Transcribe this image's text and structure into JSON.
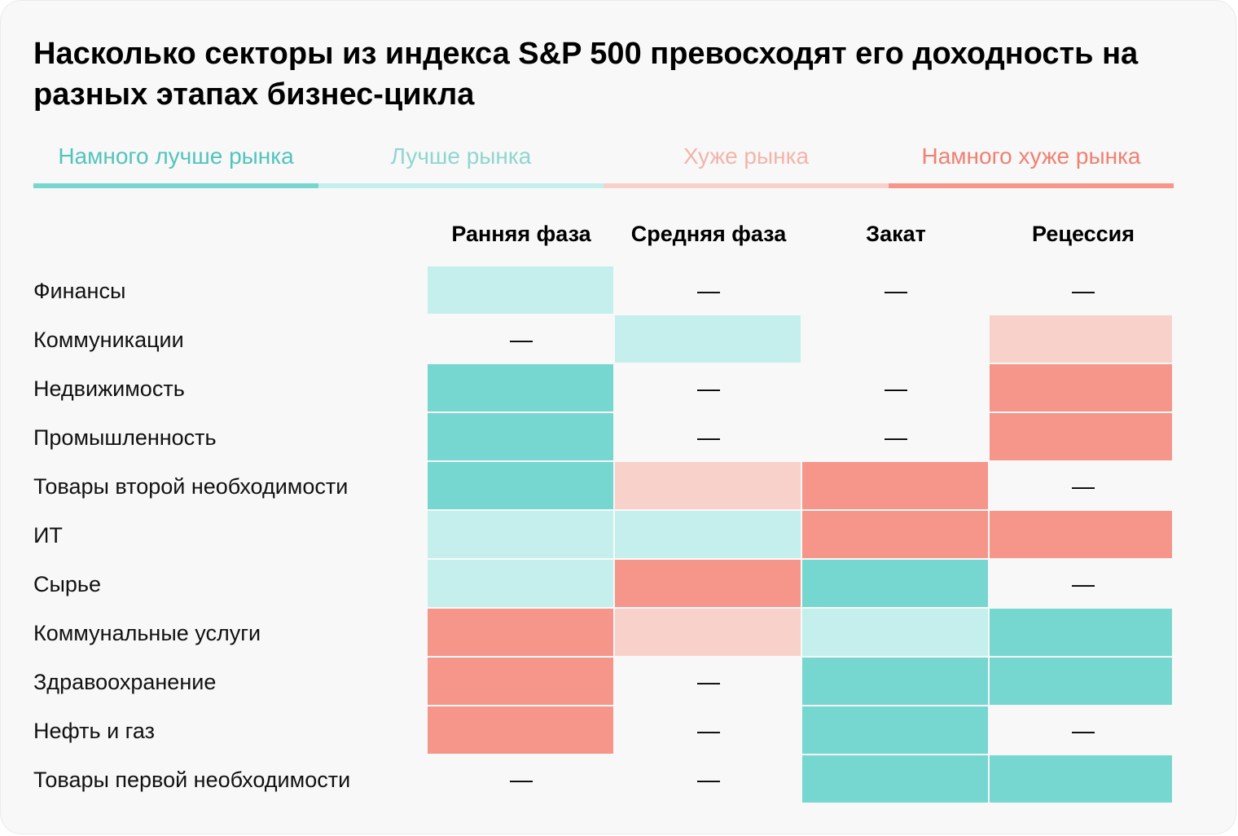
{
  "chart_data": {
    "type": "heatmap",
    "title": "Насколько секторы из индекса S&P 500 превосходят его доходность на разных этапах бизнес-цикла",
    "legend": [
      {
        "key": "much_better",
        "label": "Намного лучше рынка",
        "color": "#76d7d1",
        "text_color": "#52c4bd"
      },
      {
        "key": "better",
        "label": "Лучше рынка",
        "color": "#c5efec",
        "text_color": "#8fd6d1"
      },
      {
        "key": "worse",
        "label": "Хуже рынка",
        "color": "#f9d1cb",
        "text_color": "#f3b4aa"
      },
      {
        "key": "much_worse",
        "label": "Намного хуже рынка",
        "color": "#f6958a",
        "text_color": "#f08072"
      }
    ],
    "columns": [
      "Ранняя фаза",
      "Средняя фаза",
      "Закат",
      "Рецессия"
    ],
    "dash": "—",
    "rows": [
      {
        "label": "Финансы",
        "values": [
          "better",
          "dash",
          "dash",
          "dash"
        ]
      },
      {
        "label": "Коммуникации",
        "values": [
          "dash",
          "better",
          null,
          "worse"
        ]
      },
      {
        "label": "Недвижимость",
        "values": [
          "much_better",
          "dash",
          "dash",
          "much_worse"
        ]
      },
      {
        "label": "Промышленность",
        "values": [
          "much_better",
          "dash",
          "dash",
          "much_worse"
        ]
      },
      {
        "label": "Товары второй необходимости",
        "values": [
          "much_better",
          "worse",
          "much_worse",
          "dash"
        ]
      },
      {
        "label": "ИТ",
        "values": [
          "better",
          "better",
          "much_worse",
          "much_worse"
        ]
      },
      {
        "label": "Сырье",
        "values": [
          "better",
          "much_worse",
          "much_better",
          "dash"
        ]
      },
      {
        "label": "Коммунальные услуги",
        "values": [
          "much_worse",
          "worse",
          "better",
          "much_better"
        ]
      },
      {
        "label": "Здравоохранение",
        "values": [
          "much_worse",
          "dash",
          "much_better",
          "much_better"
        ]
      },
      {
        "label": "Нефть и газ",
        "values": [
          "much_worse",
          "dash",
          "much_better",
          "dash"
        ]
      },
      {
        "label": "Товары первой необходимости",
        "values": [
          "dash",
          "dash",
          "much_better",
          "much_better"
        ]
      }
    ]
  }
}
